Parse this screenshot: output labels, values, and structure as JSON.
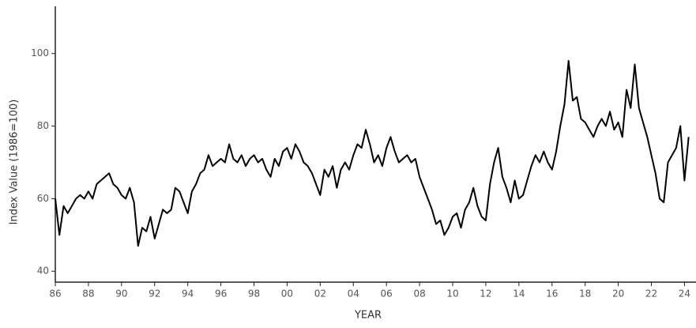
{
  "chart_data": {
    "type": "line",
    "x_label": "YEAR",
    "y_label": "Index Value (1986=100)",
    "xlim": [
      1986,
      2024.6
    ],
    "ylim": [
      37,
      113
    ],
    "xticks": [
      {
        "value": 1986,
        "label": "86"
      },
      {
        "value": 1988,
        "label": "88"
      },
      {
        "value": 1990,
        "label": "90"
      },
      {
        "value": 1992,
        "label": "92"
      },
      {
        "value": 1994,
        "label": "94"
      },
      {
        "value": 1996,
        "label": "96"
      },
      {
        "value": 1998,
        "label": "98"
      },
      {
        "value": 2000,
        "label": "00"
      },
      {
        "value": 2002,
        "label": "02"
      },
      {
        "value": 2004,
        "label": "04"
      },
      {
        "value": 2006,
        "label": "06"
      },
      {
        "value": 2008,
        "label": "08"
      },
      {
        "value": 2010,
        "label": "10"
      },
      {
        "value": 2012,
        "label": "12"
      },
      {
        "value": 2014,
        "label": "14"
      },
      {
        "value": 2016,
        "label": "16"
      },
      {
        "value": 2018,
        "label": "18"
      },
      {
        "value": 2020,
        "label": "20"
      },
      {
        "value": 2022,
        "label": "22"
      },
      {
        "value": 2024,
        "label": "24"
      }
    ],
    "yticks": [
      40,
      60,
      80,
      100
    ],
    "x": [
      1986,
      1986.25,
      1986.5,
      1986.75,
      1987,
      1987.25,
      1987.5,
      1987.75,
      1988,
      1988.25,
      1988.5,
      1988.75,
      1989,
      1989.25,
      1989.5,
      1989.75,
      1990,
      1990.25,
      1990.5,
      1990.75,
      1991,
      1991.25,
      1991.5,
      1991.75,
      1992,
      1992.25,
      1992.5,
      1992.75,
      1993,
      1993.25,
      1993.5,
      1993.75,
      1994,
      1994.25,
      1994.5,
      1994.75,
      1995,
      1995.25,
      1995.5,
      1995.75,
      1996,
      1996.25,
      1996.5,
      1996.75,
      1997,
      1997.25,
      1997.5,
      1997.75,
      1998,
      1998.25,
      1998.5,
      1998.75,
      1999,
      1999.25,
      1999.5,
      1999.75,
      2000,
      2000.25,
      2000.5,
      2000.75,
      2001,
      2001.25,
      2001.5,
      2001.75,
      2002,
      2002.25,
      2002.5,
      2002.75,
      2003,
      2003.25,
      2003.5,
      2003.75,
      2004,
      2004.25,
      2004.5,
      2004.75,
      2005,
      2005.25,
      2005.5,
      2005.75,
      2006,
      2006.25,
      2006.5,
      2006.75,
      2007,
      2007.25,
      2007.5,
      2007.75,
      2008,
      2008.25,
      2008.5,
      2008.75,
      2009,
      2009.25,
      2009.5,
      2009.75,
      2010,
      2010.25,
      2010.5,
      2010.75,
      2011,
      2011.25,
      2011.5,
      2011.75,
      2012,
      2012.25,
      2012.5,
      2012.75,
      2013,
      2013.25,
      2013.5,
      2013.75,
      2014,
      2014.25,
      2014.5,
      2014.75,
      2015,
      2015.25,
      2015.5,
      2015.75,
      2016,
      2016.25,
      2016.5,
      2016.75,
      2017,
      2017.25,
      2017.5,
      2017.75,
      2018,
      2018.25,
      2018.5,
      2018.75,
      2019,
      2019.25,
      2019.5,
      2019.75,
      2020,
      2020.25,
      2020.5,
      2020.75,
      2021,
      2021.25,
      2021.5,
      2021.75,
      2022,
      2022.25,
      2022.5,
      2022.75,
      2023,
      2023.25,
      2023.5,
      2023.75,
      2024,
      2024.25
    ],
    "series": [
      {
        "color": "#000000",
        "values": [
          60,
          50,
          58,
          56,
          58,
          60,
          61,
          60,
          62,
          60,
          64,
          65,
          66,
          67,
          64,
          63,
          61,
          60,
          63,
          59,
          47,
          52,
          51,
          55,
          49,
          53,
          57,
          56,
          57,
          63,
          62,
          59,
          56,
          62,
          64,
          67,
          68,
          72,
          69,
          70,
          71,
          70,
          75,
          71,
          70,
          72,
          69,
          71,
          72,
          70,
          71,
          68,
          66,
          71,
          69,
          73,
          74,
          71,
          75,
          73,
          70,
          69,
          67,
          64,
          61,
          68,
          66,
          69,
          63,
          68,
          70,
          68,
          72,
          75,
          74,
          79,
          75,
          70,
          72,
          69,
          74,
          77,
          73,
          70,
          71,
          72,
          70,
          71,
          66,
          63,
          60,
          57,
          53,
          54,
          50,
          52,
          55,
          56,
          52,
          57,
          59,
          63,
          58,
          55,
          54,
          64,
          70,
          74,
          66,
          63,
          59,
          65,
          60,
          61,
          65,
          69,
          72,
          70,
          73,
          70,
          68,
          73,
          80,
          86,
          98,
          87,
          88,
          82,
          81,
          79,
          77,
          80,
          82,
          80,
          84,
          79,
          81,
          77,
          90,
          85,
          97,
          85,
          81,
          77,
          72,
          67,
          60,
          59,
          70,
          72,
          74,
          80,
          65,
          77
        ]
      }
    ]
  }
}
